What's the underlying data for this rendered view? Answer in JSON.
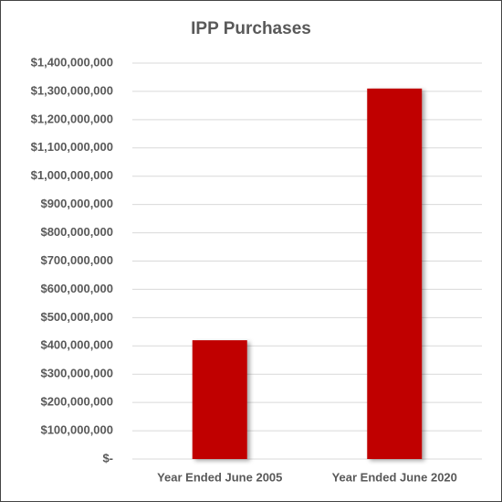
{
  "chart_data": {
    "type": "bar",
    "title": "IPP Purchases",
    "categories": [
      "Year Ended June 2005",
      "Year Ended June 2020"
    ],
    "values": [
      420000000,
      1310000000
    ],
    "color": "#c00000",
    "ylim": [
      0,
      1400000000
    ],
    "yticks": [
      {
        "value": 0,
        "label": "$-"
      },
      {
        "value": 100000000,
        "label": "$100,000,000"
      },
      {
        "value": 200000000,
        "label": "$200,000,000"
      },
      {
        "value": 300000000,
        "label": "$300,000,000"
      },
      {
        "value": 400000000,
        "label": "$400,000,000"
      },
      {
        "value": 500000000,
        "label": "$500,000,000"
      },
      {
        "value": 600000000,
        "label": "$600,000,000"
      },
      {
        "value": 700000000,
        "label": "$700,000,000"
      },
      {
        "value": 800000000,
        "label": "$800,000,000"
      },
      {
        "value": 900000000,
        "label": "$900,000,000"
      },
      {
        "value": 1000000000,
        "label": "$1,000,000,000"
      },
      {
        "value": 1100000000,
        "label": "$1,100,000,000"
      },
      {
        "value": 1200000000,
        "label": "$1,200,000,000"
      },
      {
        "value": 1300000000,
        "label": "$1,300,000,000"
      },
      {
        "value": 1400000000,
        "label": "$1,400,000,000"
      }
    ],
    "grid": true
  }
}
